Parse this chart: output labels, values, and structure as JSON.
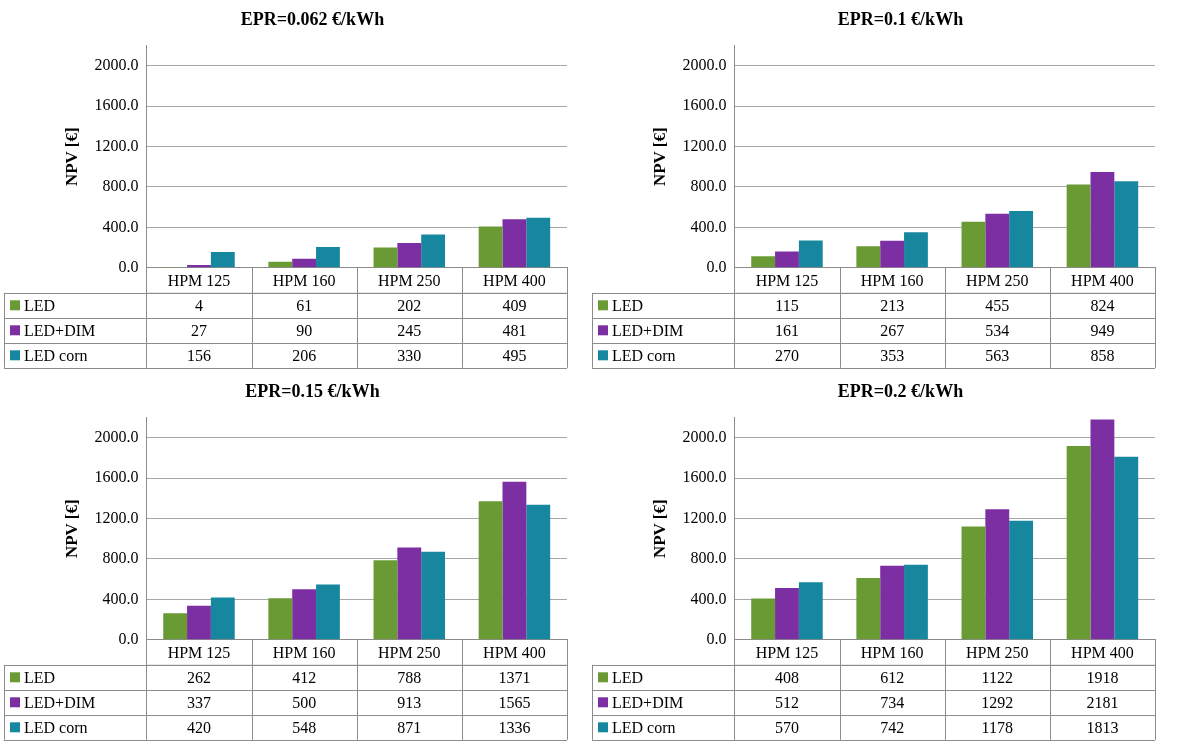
{
  "chart_data": [
    {
      "type": "bar",
      "title": "EPR=0.062 €/kWh",
      "ylabel": "NPV [€]",
      "categories": [
        "HPM 125",
        "HPM 160",
        "HPM 250",
        "HPM 400"
      ],
      "ylim": [
        0,
        2200
      ],
      "yticks": [
        {
          "value": 0,
          "label": "0.0"
        },
        {
          "value": 400,
          "label": "400.0"
        },
        {
          "value": 800,
          "label": "800.0"
        },
        {
          "value": 1200,
          "label": "1200.0"
        },
        {
          "value": 1600,
          "label": "1600.0"
        },
        {
          "value": 2000,
          "label": "2000.0"
        }
      ],
      "grid": "y",
      "legend": "bottom",
      "data_labels": true,
      "series": [
        {
          "name": "LED",
          "color": "#6a9a34",
          "values": [
            4,
            61,
            202,
            409
          ]
        },
        {
          "name": "LED+DIM",
          "color": "#7c2ea3",
          "values": [
            27,
            90,
            245,
            481
          ]
        },
        {
          "name": "LED corn",
          "color": "#16879e",
          "values": [
            156,
            206,
            330,
            495
          ]
        }
      ]
    },
    {
      "type": "bar",
      "title": "EPR=0.1 €/kWh",
      "ylabel": "NPV [€]",
      "categories": [
        "HPM 125",
        "HPM 160",
        "HPM 250",
        "HPM 400"
      ],
      "ylim": [
        0,
        2200
      ],
      "yticks": [
        {
          "value": 0,
          "label": "0.0"
        },
        {
          "value": 400,
          "label": "400.0"
        },
        {
          "value": 800,
          "label": "800.0"
        },
        {
          "value": 1200,
          "label": "1200.0"
        },
        {
          "value": 1600,
          "label": "1600.0"
        },
        {
          "value": 2000,
          "label": "2000.0"
        }
      ],
      "grid": "y",
      "legend": "bottom",
      "data_labels": true,
      "series": [
        {
          "name": "LED",
          "color": "#6a9a34",
          "values": [
            115,
            213,
            455,
            824
          ]
        },
        {
          "name": "LED+DIM",
          "color": "#7c2ea3",
          "values": [
            161,
            267,
            534,
            949
          ]
        },
        {
          "name": "LED corn",
          "color": "#16879e",
          "values": [
            270,
            353,
            563,
            858
          ]
        }
      ]
    },
    {
      "type": "bar",
      "title": "EPR=0.15 €/kWh",
      "ylabel": "NPV [€]",
      "categories": [
        "HPM 125",
        "HPM 160",
        "HPM 250",
        "HPM 400"
      ],
      "ylim": [
        0,
        2200
      ],
      "yticks": [
        {
          "value": 0,
          "label": "0.0"
        },
        {
          "value": 400,
          "label": "400.0"
        },
        {
          "value": 800,
          "label": "800.0"
        },
        {
          "value": 1200,
          "label": "1200.0"
        },
        {
          "value": 1600,
          "label": "1600.0"
        },
        {
          "value": 2000,
          "label": "2000.0"
        }
      ],
      "grid": "y",
      "legend": "bottom",
      "data_labels": true,
      "series": [
        {
          "name": "LED",
          "color": "#6a9a34",
          "values": [
            262,
            412,
            788,
            1371
          ]
        },
        {
          "name": "LED+DIM",
          "color": "#7c2ea3",
          "values": [
            337,
            500,
            913,
            1565
          ]
        },
        {
          "name": "LED corn",
          "color": "#16879e",
          "values": [
            420,
            548,
            871,
            1336
          ]
        }
      ]
    },
    {
      "type": "bar",
      "title": "EPR=0.2 €/kWh",
      "ylabel": "NPV [€]",
      "categories": [
        "HPM 125",
        "HPM 160",
        "HPM 250",
        "HPM 400"
      ],
      "ylim": [
        0,
        2200
      ],
      "yticks": [
        {
          "value": 0,
          "label": "0.0"
        },
        {
          "value": 400,
          "label": "400.0"
        },
        {
          "value": 800,
          "label": "800.0"
        },
        {
          "value": 1200,
          "label": "1200.0"
        },
        {
          "value": 1600,
          "label": "1600.0"
        },
        {
          "value": 2000,
          "label": "2000.0"
        }
      ],
      "grid": "y",
      "legend": "bottom",
      "data_labels": true,
      "series": [
        {
          "name": "LED",
          "color": "#6a9a34",
          "values": [
            408,
            612,
            1122,
            1918
          ]
        },
        {
          "name": "LED+DIM",
          "color": "#7c2ea3",
          "values": [
            512,
            734,
            1292,
            2181
          ]
        },
        {
          "name": "LED corn",
          "color": "#16879e",
          "values": [
            570,
            742,
            1178,
            1813
          ]
        }
      ]
    }
  ]
}
